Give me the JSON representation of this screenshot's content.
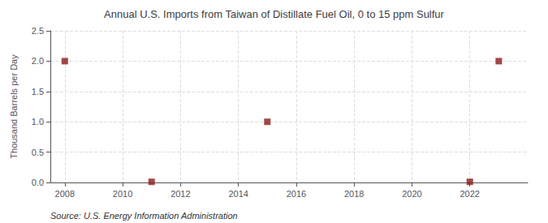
{
  "chart_data": {
    "type": "scatter",
    "title": "Annual U.S. Imports from Taiwan of Distillate Fuel Oil, 0 to 15 ppm Sulfur",
    "ylabel": "Thousand Barrels per Day",
    "annotation": "Source: U.S. Energy Information Administration",
    "x": [
      2008,
      2011,
      2015,
      2022,
      2023
    ],
    "values": [
      2.0,
      0.01,
      1.0,
      0.01,
      2.0
    ],
    "color": "#8b1a1a",
    "marker": "square",
    "xlim": [
      2007.5,
      2024.0
    ],
    "xticks": [
      2008,
      2010,
      2012,
      2014,
      2016,
      2018,
      2020,
      2022
    ],
    "ylim": [
      0.0,
      2.5
    ],
    "yticks": [
      {
        "value": 0.0,
        "label": "0.0"
      },
      0.5,
      {
        "value": 1.0,
        "label": "1.0"
      },
      1.5,
      {
        "value": 2.0,
        "label": "2.0"
      },
      2.5
    ],
    "grid": true
  }
}
